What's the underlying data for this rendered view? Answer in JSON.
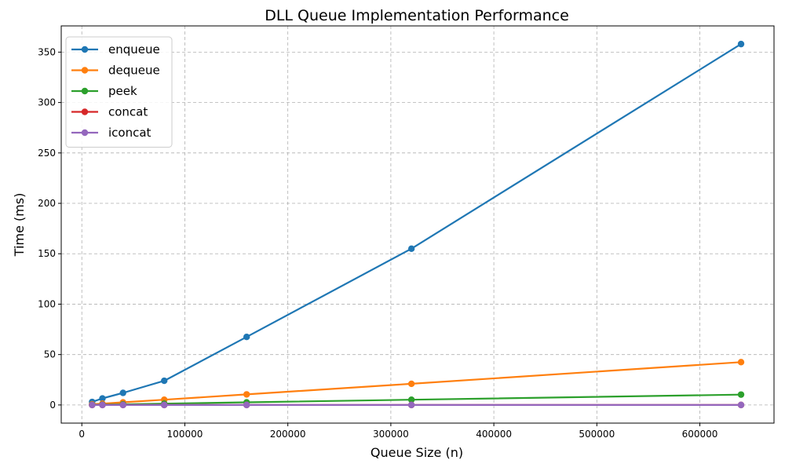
{
  "chart_data": {
    "type": "line",
    "title": "DLL Queue Implementation Performance",
    "xlabel": "Queue Size (n)",
    "ylabel": "Time (ms)",
    "x": [
      10000,
      20000,
      40000,
      80000,
      160000,
      320000,
      640000
    ],
    "xlim": [
      -20000,
      672000
    ],
    "ylim": [
      -18,
      376
    ],
    "xticks": [
      0,
      100000,
      200000,
      300000,
      400000,
      500000,
      600000
    ],
    "xtick_labels": [
      "0",
      "100000",
      "200000",
      "300000",
      "400000",
      "500000",
      "600000"
    ],
    "yticks": [
      0,
      50,
      100,
      150,
      200,
      250,
      300,
      350
    ],
    "ytick_labels": [
      "0",
      "50",
      "100",
      "150",
      "200",
      "250",
      "300",
      "350"
    ],
    "grid": true,
    "legend_position": "top-left",
    "series": [
      {
        "name": "enqueue",
        "color": "#1f77b4",
        "values": [
          3.0,
          6.5,
          12.0,
          24.0,
          67.5,
          155.0,
          358.0
        ]
      },
      {
        "name": "dequeue",
        "color": "#ff7f0e",
        "values": [
          0.7,
          1.3,
          2.6,
          5.2,
          10.5,
          21.0,
          42.5
        ]
      },
      {
        "name": "peek",
        "color": "#2ca02c",
        "values": [
          0.2,
          0.3,
          0.6,
          1.3,
          2.6,
          5.2,
          10.3
        ]
      },
      {
        "name": "concat",
        "color": "#d62728",
        "values": [
          0.0,
          0.0,
          0.0,
          0.0,
          0.0,
          0.0,
          0.0
        ]
      },
      {
        "name": "iconcat",
        "color": "#9467bd",
        "values": [
          0.0,
          0.0,
          0.0,
          0.0,
          0.0,
          0.0,
          0.0
        ]
      }
    ]
  }
}
